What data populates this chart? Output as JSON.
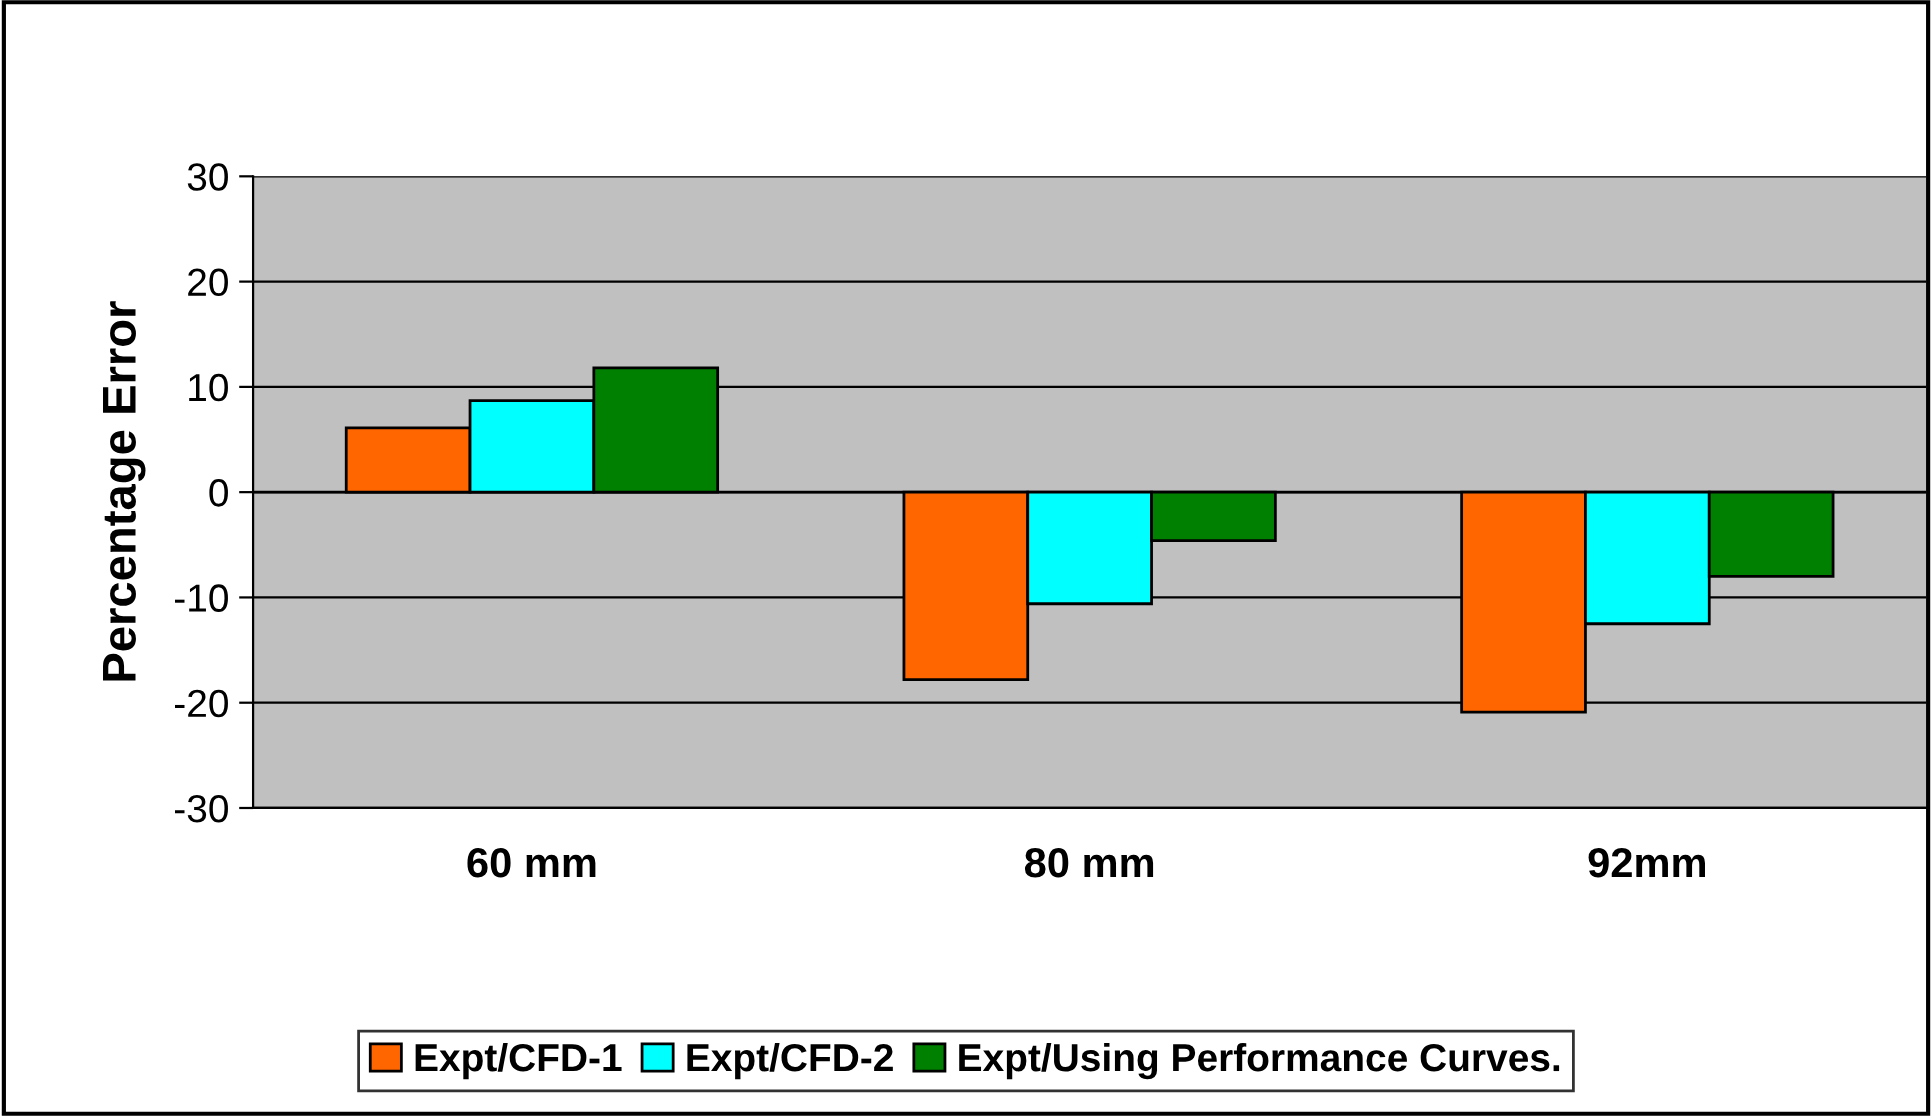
{
  "chart_data": {
    "type": "bar",
    "ylabel": "Percentage Error",
    "categories": [
      "60 mm",
      "80 mm",
      "92mm"
    ],
    "series": [
      {
        "name": "Expt/CFD-1",
        "color": "#ff6600",
        "values": [
          6.1,
          -17.8,
          -20.9
        ]
      },
      {
        "name": "Expt/CFD-2",
        "color": "#00ffff",
        "values": [
          8.7,
          -10.6,
          -12.5
        ]
      },
      {
        "name": "Expt/Using Performance Curves.",
        "color": "#008000",
        "values": [
          11.8,
          -4.6,
          -8.0
        ]
      }
    ],
    "ylim": [
      -30,
      30
    ],
    "yticks": [
      -30,
      -20,
      -10,
      0,
      10,
      20,
      30
    ],
    "grid": "y",
    "legend": "bottom"
  }
}
